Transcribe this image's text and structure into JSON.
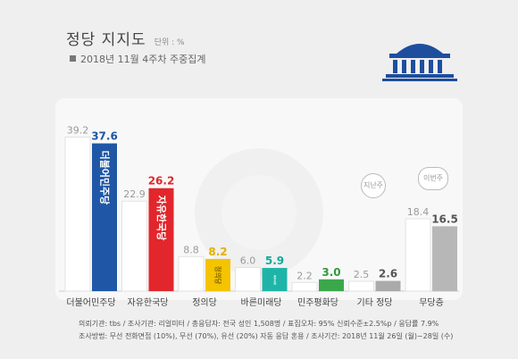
{
  "header": {
    "title": "정당 지지도",
    "unit": "단위 : %",
    "subtitle": "2018년 11월 4주차 주중집계"
  },
  "bubbles": {
    "mudang_prev": "지난주",
    "mudang_curr": "이번주"
  },
  "footer": {
    "line1": "의뢰기관: tbs / 조사기관: 리얼미터 / 총응답자: 전국 성인 1,508명 / 표집오차: 95% 신뢰수준±2.5%p / 응답률 7.9%",
    "line2": "조사방법: 무선 전화면접 (10%), 무선 (70%), 유선 (20%) 자동 응답 혼용 / 조사기간: 2018년 11월 26일 (월)~28일 (수)"
  },
  "colors": {
    "prev_bar": "#ffffff",
    "prev_label": "#9a9a9a",
    "baseline": "#cccccc"
  },
  "chart_data": {
    "type": "bar",
    "categories": [
      "더불어민주당",
      "자유한국당",
      "정의당",
      "바른미래당",
      "민주평화당",
      "기타 정당",
      "무당층"
    ],
    "series": [
      {
        "name": "지난주",
        "values": [
          39.2,
          22.9,
          8.8,
          6.0,
          2.2,
          2.5,
          18.4
        ]
      },
      {
        "name": "이번주",
        "values": [
          37.6,
          26.2,
          8.2,
          5.9,
          3.0,
          2.6,
          16.5
        ]
      }
    ],
    "current_colors": [
      "#1f57a6",
      "#e1262c",
      "#f4c400",
      "#1eb5a8",
      "#3aa84a",
      "#aaaaaa",
      "#b7b7b7"
    ],
    "current_label_colors": [
      "#1f57a6",
      "#e1262c",
      "#e3b000",
      "#14a99b",
      "#2e9a3e",
      "#555555",
      "#555555"
    ],
    "bar_texts": [
      "더불어민주당",
      "자유한국당",
      "정의당",
      "바른미래당",
      "민주평화당",
      "",
      ""
    ],
    "ylim": [
      0,
      45
    ]
  }
}
